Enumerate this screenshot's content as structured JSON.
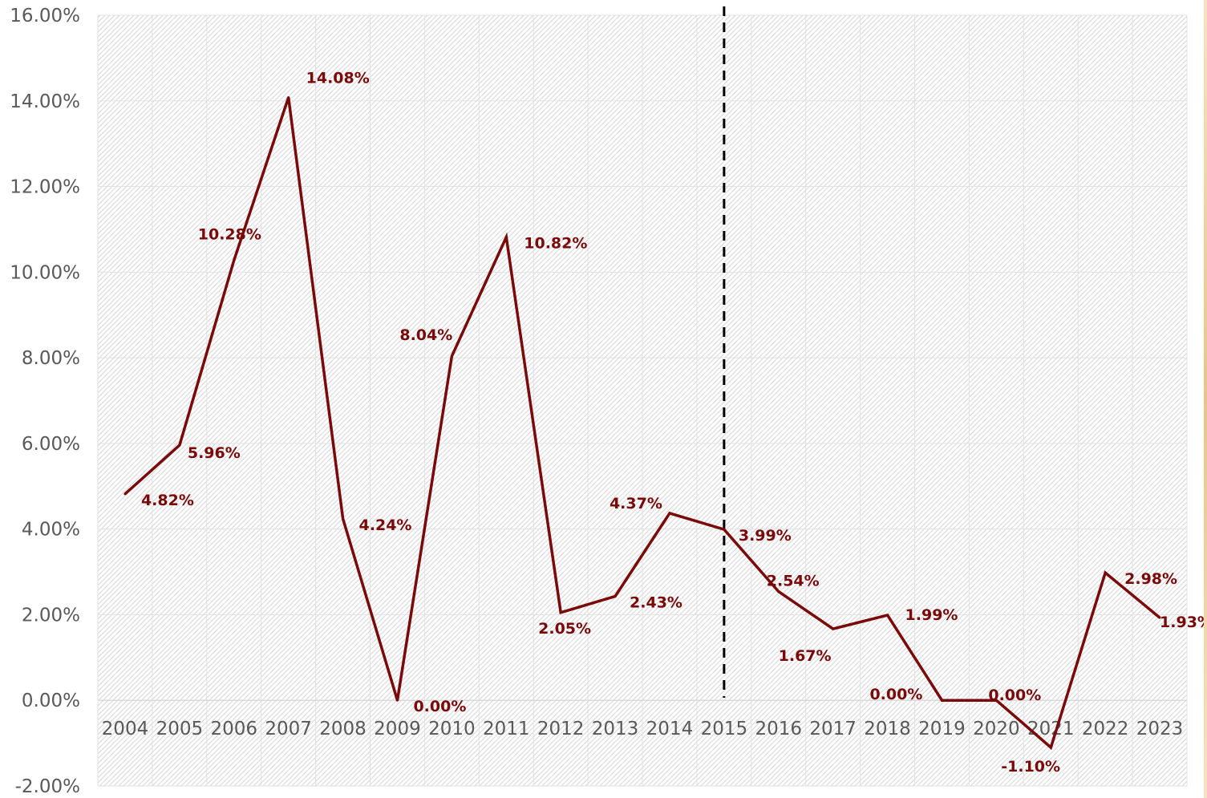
{
  "chart_data": {
    "type": "line",
    "title": "",
    "xlabel": "",
    "ylabel": "",
    "categories": [
      "2004",
      "2005",
      "2006",
      "2007",
      "2008",
      "2009",
      "2010",
      "2011",
      "2012",
      "2013",
      "2014",
      "2015",
      "2016",
      "2017",
      "2018",
      "2019",
      "2020",
      "2021",
      "2022",
      "2023"
    ],
    "series": [
      {
        "values": [
          4.82,
          5.96,
          10.28,
          14.08,
          4.24,
          0.0,
          8.04,
          10.82,
          2.05,
          2.43,
          4.37,
          3.99,
          2.54,
          1.67,
          1.99,
          0.0,
          0.0,
          -1.1,
          2.98,
          1.93
        ],
        "labels": [
          "4.82%",
          "5.96%",
          "10.28%",
          "14.08%",
          "4.24%",
          "0.00%",
          "8.04%",
          "10.82%",
          "2.05%",
          "2.43%",
          "4.37%",
          "3.99%",
          "2.54%",
          "1.67%",
          "1.99%",
          "0.00%",
          "0.00%",
          "-1.10%",
          "2.98%",
          "1.93%"
        ],
        "color": "#7a0a0a"
      }
    ],
    "ylim": [
      -2,
      16
    ],
    "yticks": [
      -2,
      0,
      2,
      4,
      6,
      8,
      10,
      12,
      14,
      16
    ],
    "ytick_labels": [
      "-2.00%",
      "0.00%",
      "2.00%",
      "4.00%",
      "6.00%",
      "8.00%",
      "10.00%",
      "12.00%",
      "14.00%",
      "16.00%"
    ],
    "grid": true,
    "plot_background": "diagonal-hatch",
    "vertical_marker": {
      "category": "2015",
      "style": "dashed",
      "color": "#000000"
    },
    "axis_text_color": "#595959"
  }
}
